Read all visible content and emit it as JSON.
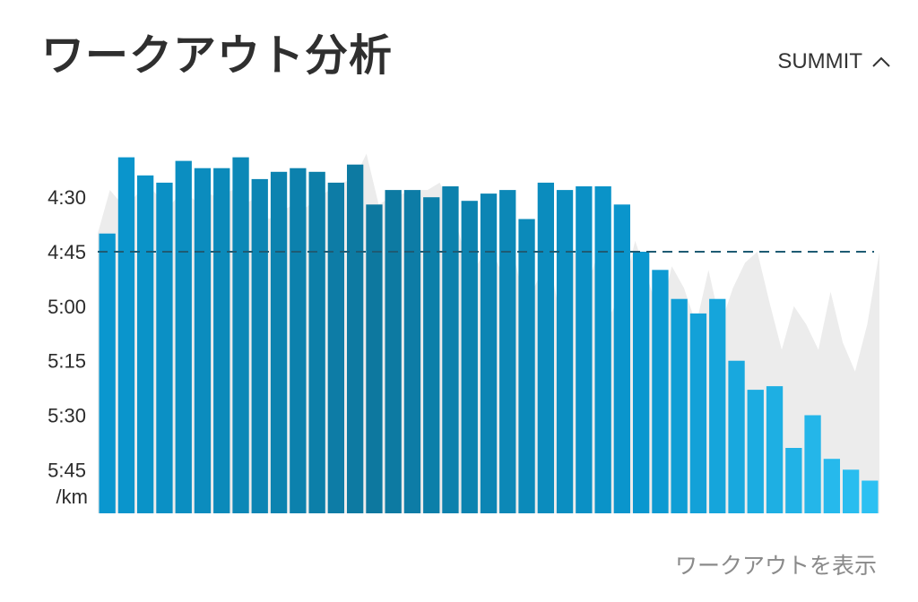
{
  "header": {
    "title": "ワークアウト分析",
    "dropdown_label": "SUMMIT"
  },
  "footer": {
    "link_label": "ワークアウトを表示"
  },
  "colors": {
    "bar_dark": "#0d789f",
    "bar_mid": "#0a97cf",
    "bar_light": "#2cc0f2",
    "background_series": "#ececec",
    "reference_line": "#1e5b73"
  },
  "chart_data": {
    "type": "bar",
    "unit_label": "/km",
    "y_ticks": [
      "4:30",
      "4:45",
      "5:00",
      "5:15",
      "5:30",
      "5:45"
    ],
    "y_tick_values_sec_per_km": [
      270,
      285,
      300,
      315,
      330,
      345
    ],
    "ylim_sec_per_km": [
      249,
      357
    ],
    "y_inverted": true,
    "reference_line_sec_per_km": 285,
    "reference_line_label": "4:45",
    "series": [
      {
        "values_sec_per_km": [
          280,
          259,
          264,
          266,
          260,
          262,
          262,
          259,
          265,
          263,
          262,
          263,
          266,
          261,
          272,
          268,
          268,
          270,
          267,
          271,
          269,
          268,
          276,
          266,
          268,
          267,
          267,
          272,
          285,
          290,
          298,
          302,
          298,
          315,
          323,
          322,
          339,
          330,
          342,
          345,
          348
        ]
      }
    ],
    "background_series_sec_per_km": [
      280,
      268,
      272,
      270,
      266,
      270,
      272,
      268,
      271,
      269,
      270,
      268,
      272,
      270,
      276,
      274,
      272,
      273,
      270,
      268,
      266,
      265,
      258,
      272,
      270,
      269,
      268,
      268,
      266,
      273,
      285,
      289,
      283,
      290,
      285,
      300,
      293,
      288,
      305,
      284,
      295,
      285,
      302,
      296,
      282,
      292,
      303,
      289,
      295,
      305,
      290,
      305,
      295,
      288,
      285,
      299,
      312,
      300,
      305,
      312,
      296,
      310,
      318,
      305,
      285
    ]
  }
}
